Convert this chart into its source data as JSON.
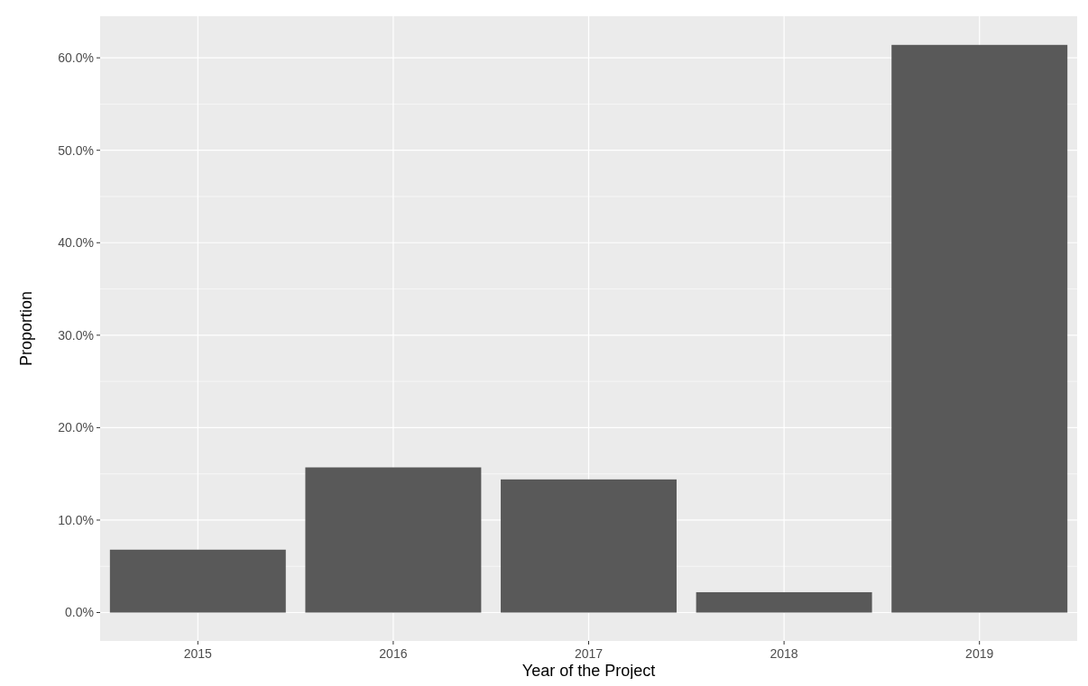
{
  "chart_data": {
    "type": "bar",
    "xlabel": "Year of the Project",
    "ylabel": "Proportion",
    "categories": [
      "2015",
      "2016",
      "2017",
      "2018",
      "2019"
    ],
    "values": [
      6.8,
      15.7,
      14.4,
      2.2,
      61.4
    ],
    "color": "#595959",
    "ylim": [
      -3.07,
      64.5
    ],
    "yticks": [
      {
        "value": 0,
        "label": "0.0%"
      },
      {
        "value": 10,
        "label": "10.0%"
      },
      {
        "value": 20,
        "label": "20.0%"
      },
      {
        "value": 30,
        "label": "30.0%"
      },
      {
        "value": 40,
        "label": "40.0%"
      },
      {
        "value": 50,
        "label": "50.0%"
      },
      {
        "value": 60,
        "label": "60.0%"
      }
    ],
    "grid": true
  }
}
